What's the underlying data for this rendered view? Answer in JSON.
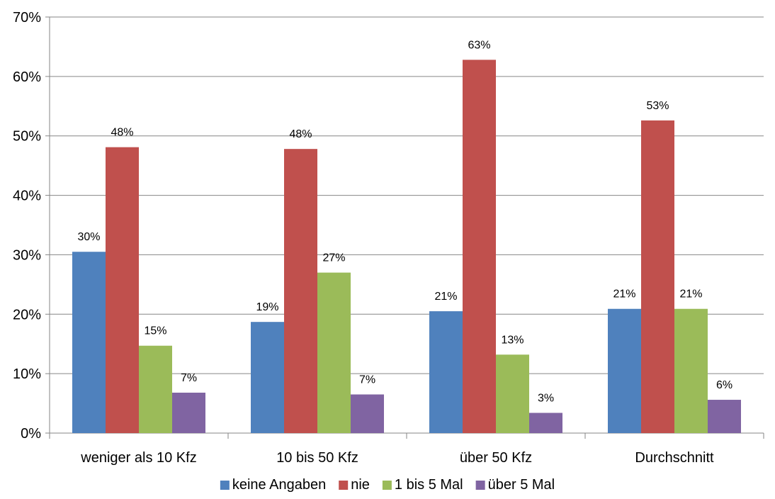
{
  "chart_data": {
    "type": "bar",
    "title": "",
    "xlabel": "",
    "ylabel": "",
    "ylim": [
      0,
      70
    ],
    "yticks": [
      "0%",
      "10%",
      "20%",
      "30%",
      "40%",
      "50%",
      "60%",
      "70%"
    ],
    "grid": true,
    "legend": "bottom",
    "categories": [
      "weniger als 10 Kfz",
      "10 bis 50 Kfz",
      "über 50 Kfz",
      "Durchschnitt"
    ],
    "series": [
      {
        "name": "keine Angaben",
        "color": "#4F81BD",
        "values": [
          30.5,
          18.7,
          20.5,
          20.9
        ],
        "labels": [
          "30%",
          "19%",
          "21%",
          "21%"
        ]
      },
      {
        "name": "nie",
        "color": "#C0504D",
        "values": [
          48.1,
          47.8,
          62.8,
          52.6
        ],
        "labels": [
          "48%",
          "48%",
          "63%",
          "53%"
        ]
      },
      {
        "name": "1 bis 5 Mal",
        "color": "#9BBB59",
        "values": [
          14.7,
          27.0,
          13.2,
          20.9
        ],
        "labels": [
          "15%",
          "27%",
          "13%",
          "21%"
        ]
      },
      {
        "name": "über 5 Mal",
        "color": "#8064A2",
        "values": [
          6.8,
          6.5,
          3.4,
          5.6
        ],
        "labels": [
          "7%",
          "7%",
          "3%",
          "6%"
        ]
      }
    ]
  }
}
